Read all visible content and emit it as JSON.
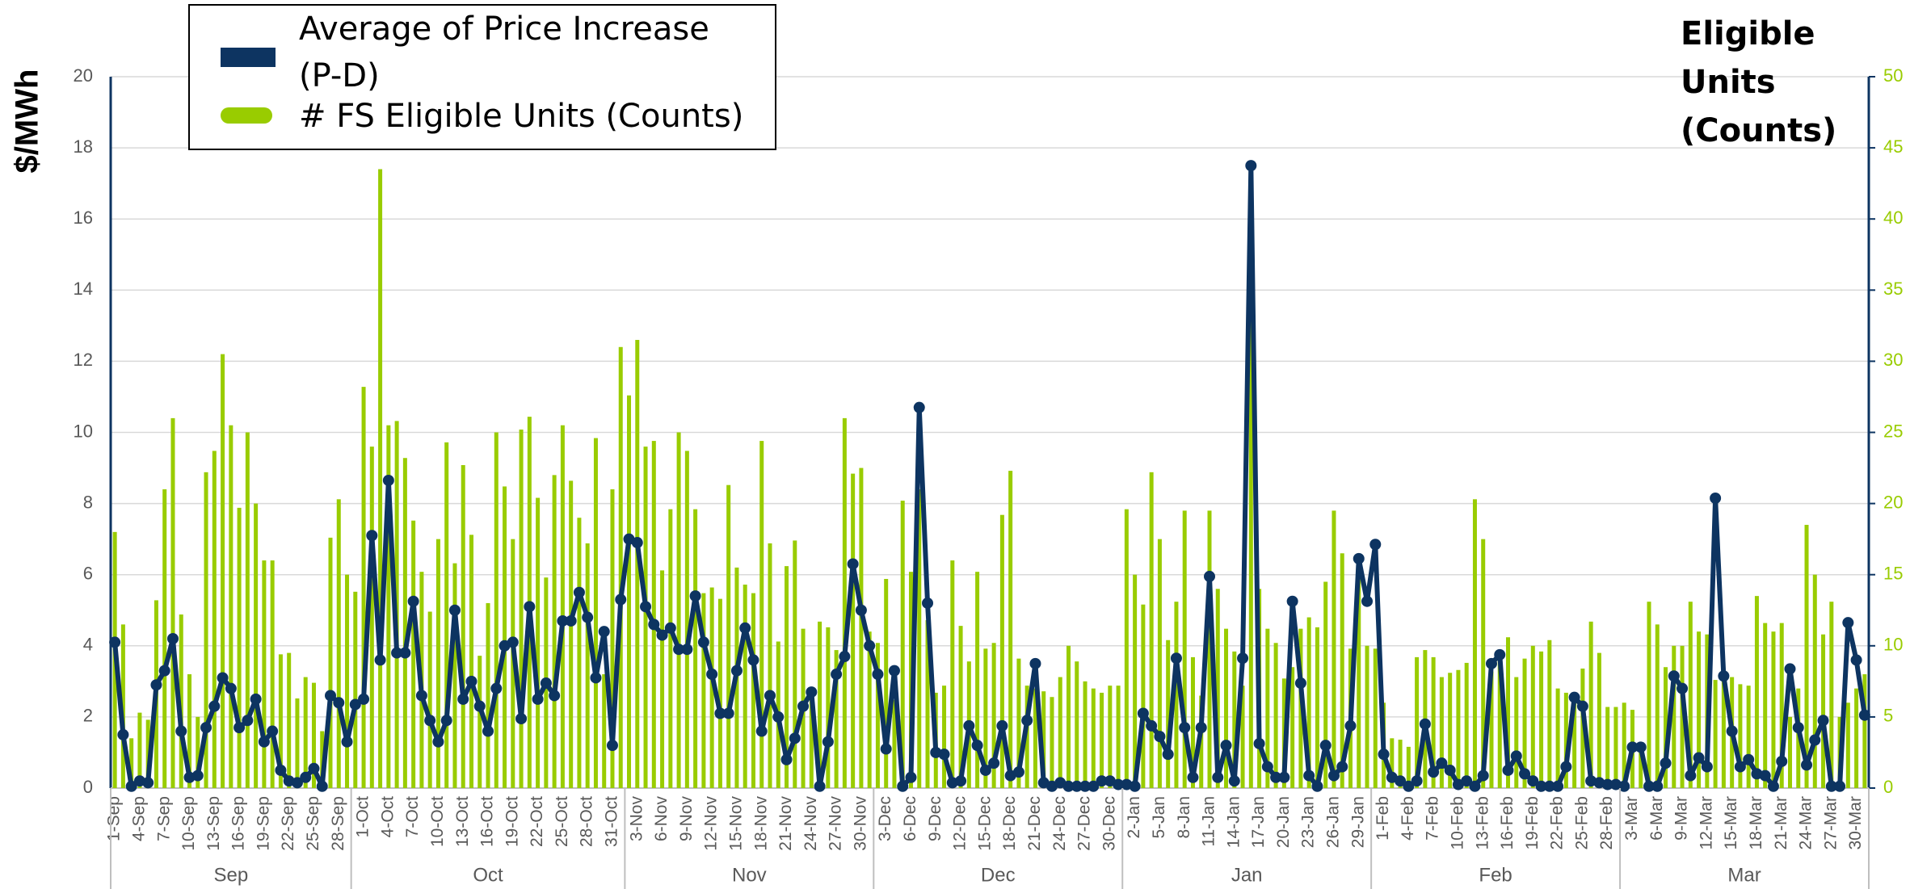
{
  "chart_data": {
    "type": "bar_line",
    "y_axis_label": "$/MWh",
    "y2_axis_label": "Eligible Units (Counts)",
    "categories": [
      "1-Sep",
      null,
      null,
      "4-Sep",
      null,
      null,
      "7-Sep",
      null,
      null,
      "10-Sep",
      null,
      null,
      "13-Sep",
      null,
      null,
      "16-Sep",
      null,
      null,
      "19-Sep",
      null,
      null,
      "22-Sep",
      null,
      null,
      "25-Sep",
      null,
      null,
      "28-Sep",
      null,
      null,
      "1-Oct",
      null,
      null,
      "4-Oct",
      null,
      null,
      "7-Oct",
      null,
      null,
      "10-Oct",
      null,
      null,
      "13-Oct",
      null,
      null,
      "16-Oct",
      null,
      null,
      "19-Oct",
      null,
      null,
      "22-Oct",
      null,
      null,
      "25-Oct",
      null,
      null,
      "28-Oct",
      null,
      null,
      "31-Oct",
      null,
      null,
      "3-Nov",
      null,
      null,
      "6-Nov",
      null,
      null,
      "9-Nov",
      null,
      null,
      "12-Nov",
      null,
      null,
      "15-Nov",
      null,
      null,
      "18-Nov",
      null,
      null,
      "21-Nov",
      null,
      null,
      "24-Nov",
      null,
      null,
      "27-Nov",
      null,
      null,
      "30-Nov",
      null,
      null,
      "3-Dec",
      null,
      null,
      "6-Dec",
      null,
      null,
      "9-Dec",
      null,
      null,
      "12-Dec",
      null,
      null,
      "15-Dec",
      null,
      null,
      "18-Dec",
      null,
      null,
      "21-Dec",
      null,
      null,
      "24-Dec",
      null,
      null,
      "27-Dec",
      null,
      null,
      "30-Dec",
      null,
      null,
      "2-Jan",
      null,
      null,
      "5-Jan",
      null,
      null,
      "8-Jan",
      null,
      null,
      "11-Jan",
      null,
      null,
      "14-Jan",
      null,
      null,
      "17-Jan",
      null,
      null,
      "20-Jan",
      null,
      null,
      "23-Jan",
      null,
      null,
      "26-Jan",
      null,
      null,
      "29-Jan",
      null,
      null,
      "1-Feb",
      null,
      null,
      "4-Feb",
      null,
      null,
      "7-Feb",
      null,
      null,
      "10-Feb",
      null,
      null,
      "13-Feb",
      null,
      null,
      "16-Feb",
      null,
      null,
      "19-Feb",
      null,
      null,
      "22-Feb",
      null,
      null,
      "25-Feb",
      null,
      null,
      "28-Feb",
      null,
      null,
      "3-Mar",
      null,
      null,
      "6-Mar",
      null,
      null,
      "9-Mar",
      null,
      null,
      "12-Mar",
      null,
      null,
      "15-Mar",
      null,
      null,
      "18-Mar",
      null,
      null,
      "21-Mar",
      null,
      null,
      "24-Mar",
      null,
      null,
      "27-Mar",
      null,
      null,
      "30-Mar",
      null
    ],
    "x_group_labels": [
      "Sep",
      "Oct",
      "Nov",
      "Dec",
      "Jan",
      "Feb",
      "Mar"
    ],
    "series": [
      {
        "name": "Average of Price Increase (P-D)",
        "type": "line",
        "color": "#0d3461",
        "axis": "y",
        "values": [
          4.1,
          1.5,
          0.05,
          0.2,
          0.15,
          2.9,
          3.3,
          4.2,
          1.6,
          0.3,
          0.35,
          1.7,
          2.3,
          3.1,
          2.8,
          1.7,
          1.9,
          2.5,
          1.3,
          1.6,
          0.5,
          0.2,
          0.15,
          0.3,
          0.55,
          0.05,
          2.6,
          2.4,
          1.3,
          2.35,
          2.5,
          7.1,
          3.6,
          8.65,
          3.8,
          3.8,
          5.25,
          2.6,
          1.9,
          1.3,
          1.9,
          5.0,
          2.5,
          3.0,
          2.3,
          1.6,
          2.8,
          4.0,
          4.1,
          1.95,
          5.1,
          2.5,
          2.95,
          2.6,
          4.7,
          4.7,
          5.5,
          4.8,
          3.1,
          4.4,
          1.2,
          5.3,
          7.0,
          6.9,
          5.1,
          4.6,
          4.3,
          4.5,
          3.9,
          3.9,
          5.4,
          4.1,
          3.2,
          2.1,
          2.1,
          3.3,
          4.5,
          3.6,
          1.6,
          2.6,
          2.0,
          0.8,
          1.4,
          2.3,
          2.7,
          0.05,
          1.3,
          3.2,
          3.7,
          6.3,
          5.0,
          4.0,
          3.2,
          1.1,
          3.3,
          0.05,
          0.3,
          10.7,
          5.2,
          1.0,
          0.95,
          0.15,
          0.2,
          1.75,
          1.2,
          0.5,
          0.7,
          1.75,
          0.35,
          0.45,
          1.9,
          3.5,
          0.15,
          0.05,
          0.15,
          0.05,
          0.05,
          0.05,
          0.05,
          0.2,
          0.2,
          0.1,
          0.1,
          0.05,
          2.1,
          1.75,
          1.45,
          0.95,
          3.65,
          1.7,
          0.3,
          1.7,
          5.95,
          0.3,
          1.2,
          0.2,
          3.65,
          17.5,
          1.25,
          0.6,
          0.3,
          0.3,
          5.25,
          2.95,
          0.35,
          0.05,
          1.2,
          0.35,
          0.6,
          1.75,
          6.45,
          5.25,
          6.85,
          0.95,
          0.3,
          0.2,
          0.05,
          0.2,
          1.8,
          0.45,
          0.7,
          0.5,
          0.1,
          0.2,
          0.05,
          0.35,
          3.5,
          3.75,
          0.5,
          0.9,
          0.4,
          0.2,
          0.05,
          0.05,
          0.05,
          0.6,
          2.55,
          2.3,
          0.2,
          0.15,
          0.1,
          0.1,
          0.05,
          1.15,
          1.15,
          0.05,
          0.05,
          0.7,
          3.15,
          2.8,
          0.35,
          0.85,
          0.6,
          8.15,
          3.15,
          1.6,
          0.6,
          0.8,
          0.4,
          0.35,
          0.05,
          0.75,
          3.35,
          1.7,
          0.65,
          1.35,
          1.9,
          0.05,
          0.05,
          4.65,
          3.6,
          2.05
        ]
      },
      {
        "name": "# FS Eligible Units (Counts)",
        "type": "bar",
        "color": "#99cc00",
        "axis": "y2",
        "values": [
          18,
          11.5,
          3.5,
          5.3,
          4.8,
          13.2,
          21,
          26,
          12.2,
          8,
          5,
          22.2,
          23.7,
          30.5,
          25.5,
          19.7,
          25,
          20,
          16,
          16,
          9.4,
          9.5,
          6.3,
          7.8,
          7.4,
          4,
          17.6,
          20.3,
          15,
          13.8,
          28.2,
          24,
          43.5,
          25.5,
          25.8,
          23.2,
          18.8,
          15.2,
          12.4,
          17.5,
          24.3,
          15.8,
          22.7,
          17.8,
          9.3,
          13,
          25,
          21.2,
          17.5,
          25.2,
          26.1,
          20.4,
          14.8,
          22,
          25.5,
          21.6,
          19,
          17.2,
          24.6,
          8,
          21,
          31,
          27.6,
          31.5,
          24,
          24.4,
          15.3,
          19.6,
          25,
          23.7,
          19.6,
          13.7,
          14.1,
          13.3,
          21.3,
          15.5,
          14.3,
          13.7,
          24.4,
          17.2,
          10.3,
          15.6,
          17.4,
          11.2,
          6.5,
          11.7,
          11.3,
          9.7,
          26,
          22.1,
          22.5,
          11,
          10.2,
          14.7,
          6.2,
          20.2,
          15.2,
          21,
          11.8,
          6.7,
          7.2,
          16,
          11.4,
          8.9,
          15.2,
          9.8,
          10.2,
          19.2,
          22.3,
          9.1,
          7.2,
          7,
          6.8,
          6.4,
          7.8,
          10,
          8.9,
          7.5,
          7,
          6.7,
          7.2,
          7.2,
          19.6,
          15,
          12.9,
          22.2,
          17.5,
          10.4,
          13.1,
          19.5,
          9.2,
          6.5,
          19.5,
          14,
          11.2,
          9.6,
          7.2,
          42,
          14,
          11.2,
          10.2,
          7.7,
          8.5,
          11.2,
          12,
          11.3,
          14.5,
          19.5,
          16.5,
          9.8,
          15,
          10,
          9.8,
          6,
          3.5,
          3.4,
          2.9,
          9.2,
          9.7,
          9.2,
          7.8,
          8.1,
          8.3,
          8.8,
          20.3,
          17.5,
          8.2,
          9.6,
          10.6,
          7.8,
          9.1,
          10,
          9.6,
          10.4,
          7,
          6.7,
          6,
          8.4,
          11.7,
          9.5,
          5.7,
          5.7,
          6,
          5.5,
          2.5,
          13.1,
          11.5,
          8.5,
          10,
          10,
          13.1,
          11,
          10.8,
          7.6,
          8.3,
          7.8,
          7.3,
          7.2,
          13.5,
          11.6,
          11,
          11.6,
          5,
          7,
          18.5,
          15,
          10.8,
          13.1,
          5,
          6,
          7,
          8
        ]
      }
    ],
    "ylim": [
      0,
      20
    ],
    "yticks": [
      0,
      2,
      4,
      6,
      8,
      10,
      12,
      14,
      16,
      18,
      20
    ],
    "y2lim": [
      0,
      50
    ],
    "y2ticks": [
      0,
      5,
      10,
      15,
      20,
      25,
      30,
      35,
      40,
      45,
      50
    ],
    "grid": true,
    "legend": "top-left"
  }
}
